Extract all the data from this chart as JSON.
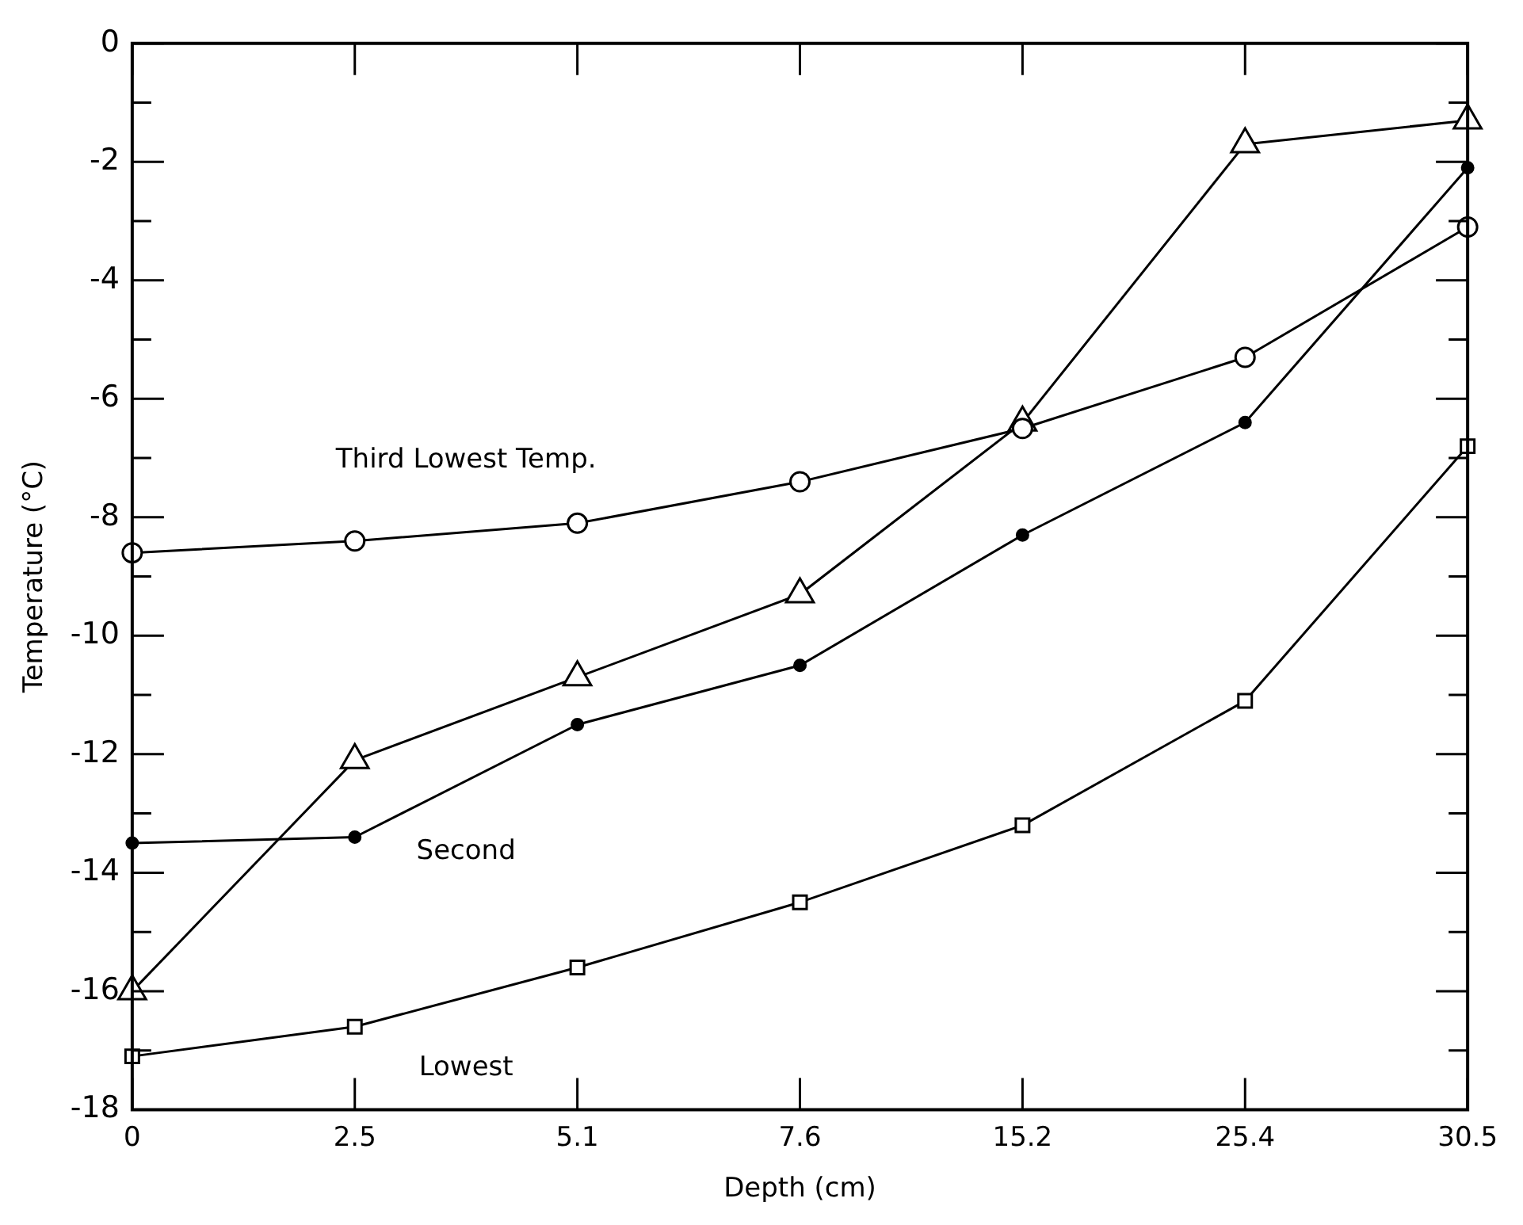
{
  "chart_data": {
    "type": "line",
    "xlabel": "Depth (cm)",
    "ylabel": "Temperature (°C)",
    "categories": [
      "0",
      "2.5",
      "5.1",
      "7.6",
      "15.2",
      "25.4",
      "30.5"
    ],
    "series": [
      {
        "name": "Third Lowest Temp.",
        "color": "#000000",
        "marker": "circle",
        "values": [
          -8.6,
          -8.4,
          -8.1,
          -7.4,
          -6.5,
          -5.3,
          -3.1
        ]
      },
      {
        "color": "#000000",
        "marker": "triangle",
        "values": [
          -16.0,
          -12.1,
          -10.7,
          -9.3,
          -6.4,
          -1.7,
          -1.3
        ]
      },
      {
        "name": "Second",
        "color": "#000000",
        "marker": "dot",
        "values": [
          -13.5,
          -13.4,
          -11.5,
          -10.5,
          -8.3,
          -6.4,
          -2.1
        ]
      },
      {
        "name": "Lowest",
        "color": "#000000",
        "marker": "square",
        "values": [
          -17.1,
          -16.6,
          -15.6,
          -14.5,
          -13.2,
          -11.1,
          -6.8
        ]
      }
    ],
    "ylim": [
      -18,
      0
    ],
    "yticks": [
      -18,
      {
        "value": -17,
        "label": null
      },
      -16,
      {
        "value": -15,
        "label": null
      },
      -14,
      {
        "value": -13,
        "label": null
      },
      -12,
      {
        "value": -11,
        "label": null
      },
      -10,
      {
        "value": -9,
        "label": null
      },
      -8,
      {
        "value": -7,
        "label": null
      },
      -6,
      {
        "value": -5,
        "label": null
      },
      -4,
      {
        "value": -3,
        "label": null
      },
      -2,
      {
        "value": -1,
        "label": null
      },
      0
    ],
    "grid": false,
    "legend": false
  }
}
